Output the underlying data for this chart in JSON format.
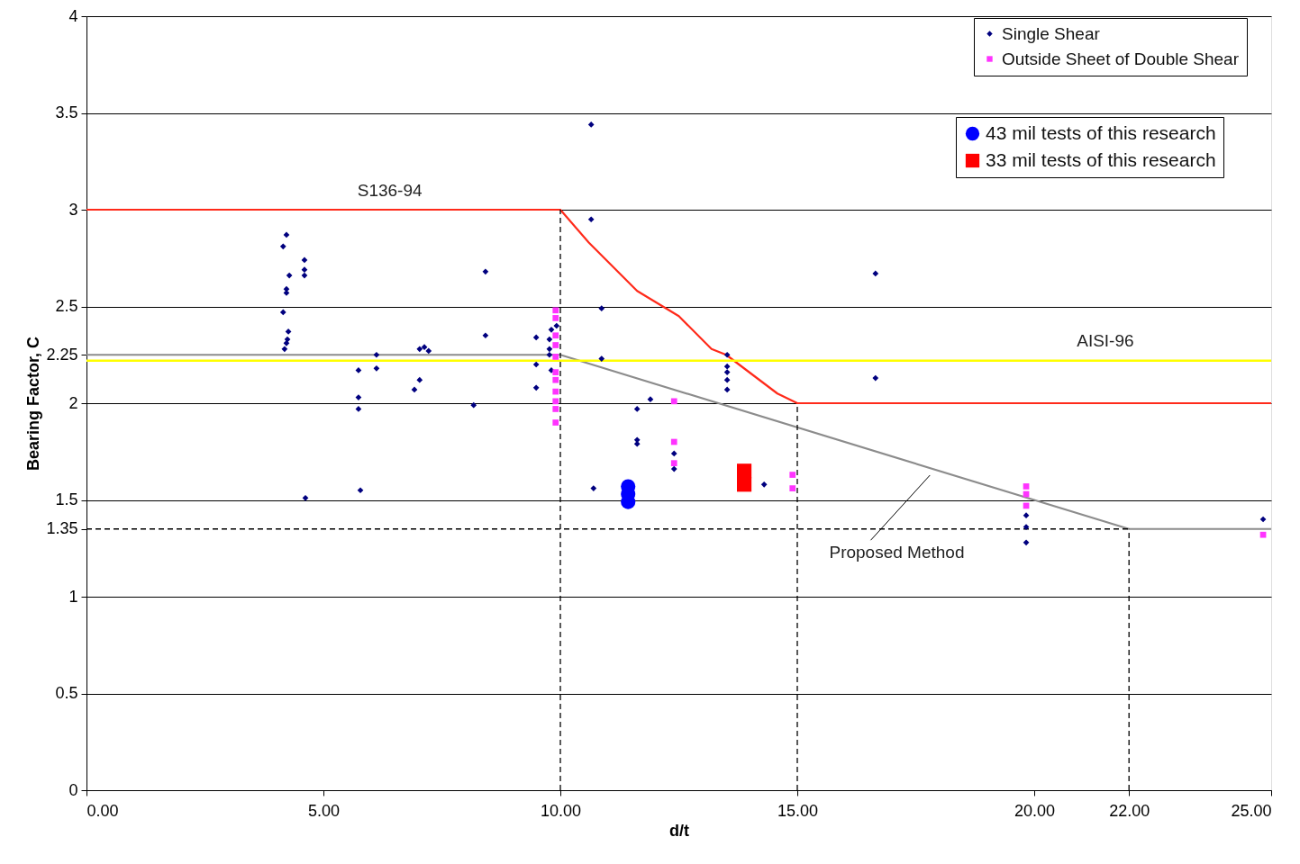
{
  "chart_data": {
    "type": "scatter",
    "xlabel": "d/t",
    "ylabel": "Bearing Factor, C",
    "xlim": [
      0,
      25
    ],
    "ylim": [
      0,
      4
    ],
    "xticks": [
      {
        "value": 0,
        "label": "0.00"
      },
      {
        "value": 5,
        "label": "5.00"
      },
      {
        "value": 10,
        "label": "10.00"
      },
      {
        "value": 15,
        "label": "15.00"
      },
      {
        "value": 20,
        "label": "20.00"
      },
      {
        "value": 22,
        "label": "22.00"
      },
      {
        "value": 25,
        "label": "25.00"
      }
    ],
    "yticks": [
      0,
      0.5,
      1,
      1.35,
      1.5,
      2,
      2.25,
      2.5,
      3,
      3.5,
      4
    ],
    "grid": "y",
    "legend": "top right",
    "series": [
      {
        "type": "line",
        "color": "#ff2a1a",
        "line_style": "solid",
        "x": [
          0,
          10,
          10.6,
          11.62,
          12.5,
          13.19,
          13.5,
          14.58,
          15,
          25
        ],
        "values": [
          3,
          3,
          2.83,
          2.58,
          2.45,
          2.28,
          2.25,
          2.05,
          2,
          2
        ]
      },
      {
        "type": "line",
        "color": "#8c8c8c",
        "line_style": "solid",
        "x": [
          0,
          10,
          22,
          25
        ],
        "values": [
          2.25,
          2.25,
          1.35,
          1.35
        ]
      },
      {
        "type": "line",
        "color": "#000000",
        "line_style": "dashed",
        "x": [
          10,
          10
        ],
        "values": [
          0,
          3
        ]
      },
      {
        "type": "line",
        "color": "#000000",
        "line_style": "dashed",
        "x": [
          15,
          15
        ],
        "values": [
          0,
          2
        ]
      },
      {
        "type": "line",
        "color": "#000000",
        "line_style": "dashed",
        "x": [
          22,
          22
        ],
        "values": [
          0,
          1.35
        ]
      },
      {
        "type": "line",
        "color": "#000000",
        "line_style": "dashed",
        "x": [
          0,
          22
        ],
        "values": [
          1.35,
          1.35
        ]
      },
      {
        "name": "Single Shear",
        "type": "scatter",
        "marker": "diamond",
        "color": "#00007f",
        "x": [
          4.22,
          4.15,
          4.28,
          4.22,
          4.22,
          4.15,
          4.26,
          4.24,
          4.22,
          4.18,
          4.6,
          4.6,
          4.6,
          4.62,
          5.74,
          6.12,
          6.12,
          5.74,
          5.74,
          5.78,
          7.03,
          7.13,
          7.22,
          7.03,
          6.92,
          8.17,
          8.42,
          8.42,
          9.49,
          9.49,
          9.49,
          9.92,
          9.81,
          9.77,
          9.77,
          9.77,
          9.81,
          10.65,
          10.65,
          10.87,
          10.87,
          11.62,
          11.9,
          11.62,
          11.62,
          12.4,
          12.4,
          10.7,
          14.3,
          13.52,
          13.52,
          13.52,
          13.52,
          13.52,
          16.65,
          16.65,
          19.83,
          19.83,
          19.83,
          24.83
        ],
        "values": [
          2.87,
          2.81,
          2.66,
          2.59,
          2.57,
          2.47,
          2.37,
          2.33,
          2.31,
          2.28,
          2.74,
          2.69,
          2.66,
          1.51,
          2.17,
          2.25,
          2.18,
          2.03,
          1.97,
          1.55,
          2.28,
          2.29,
          2.27,
          2.12,
          2.07,
          1.99,
          2.68,
          2.35,
          2.34,
          2.2,
          2.08,
          2.4,
          2.38,
          2.33,
          2.28,
          2.25,
          2.17,
          3.44,
          2.95,
          2.49,
          2.23,
          1.97,
          2.02,
          1.81,
          1.79,
          1.74,
          1.66,
          1.56,
          1.58,
          2.25,
          2.19,
          2.16,
          2.12,
          2.07,
          2.67,
          2.13,
          1.42,
          1.36,
          1.28,
          1.4
        ]
      },
      {
        "name": "Outside Sheet of Double Shear",
        "type": "scatter",
        "marker": "square",
        "color": "#ff33ff",
        "x": [
          9.9,
          9.9,
          9.9,
          9.9,
          9.9,
          9.9,
          9.9,
          9.9,
          9.9,
          9.9,
          9.9,
          12.4,
          12.4,
          12.4,
          14.9,
          14.9,
          19.83,
          19.83,
          19.83,
          24.83
        ],
        "values": [
          2.48,
          2.44,
          2.35,
          2.3,
          2.24,
          2.16,
          2.12,
          2.06,
          2.01,
          1.97,
          1.9,
          2.01,
          1.8,
          1.69,
          1.63,
          1.56,
          1.57,
          1.53,
          1.47,
          1.32
        ]
      },
      {
        "name": "43 mil tests of this research",
        "type": "scatter",
        "marker": "circle",
        "color": "#0000ff",
        "x": [
          11.43,
          11.43,
          11.43
        ],
        "values": [
          1.57,
          1.53,
          1.49
        ]
      },
      {
        "name": "33 mil tests of this research",
        "type": "scatter",
        "marker": "square",
        "color": "#ff0000",
        "x": [
          13.88,
          13.88
        ],
        "values": [
          1.65,
          1.58
        ]
      }
    ],
    "ref_lines": [
      {
        "axis": "y",
        "value": 2.22,
        "label": "AISI-96",
        "color": "#ffff00"
      }
    ],
    "annotations": [
      "S136-94",
      "Proposed Method"
    ]
  }
}
